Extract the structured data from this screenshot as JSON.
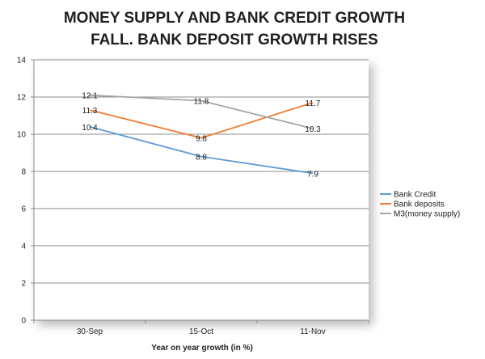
{
  "chart_data": {
    "type": "line",
    "title_lines": [
      "MONEY SUPPLY AND BANK CREDIT GROWTH",
      "FALL. BANK DEPOSIT GROWTH RISES"
    ],
    "xlabel": "Year on year growth (in %)",
    "ylabel": "",
    "categories": [
      "30-Sep",
      "15-Oct",
      "11-Nov"
    ],
    "ylim": [
      0,
      14
    ],
    "yticks": [
      "0",
      "2",
      "4",
      "6",
      "8",
      "10",
      "12",
      "14"
    ],
    "grid": true,
    "legend_position": "right",
    "series": [
      {
        "name": "Bank Credit",
        "values": [
          10.4,
          8.8,
          7.9
        ],
        "labels": [
          "10.4",
          "8.8",
          "7.9"
        ],
        "color": "#5b9bd5"
      },
      {
        "name": "Bank deposits",
        "values": [
          11.3,
          9.8,
          11.7
        ],
        "labels": [
          "11.3",
          "9.8",
          "11.7"
        ],
        "color": "#ed7d31"
      },
      {
        "name": "M3(money supply)",
        "values": [
          12.1,
          11.8,
          10.3
        ],
        "labels": [
          "12.1",
          "11.8",
          "10.3"
        ],
        "color": "#a5a5a5"
      }
    ]
  }
}
